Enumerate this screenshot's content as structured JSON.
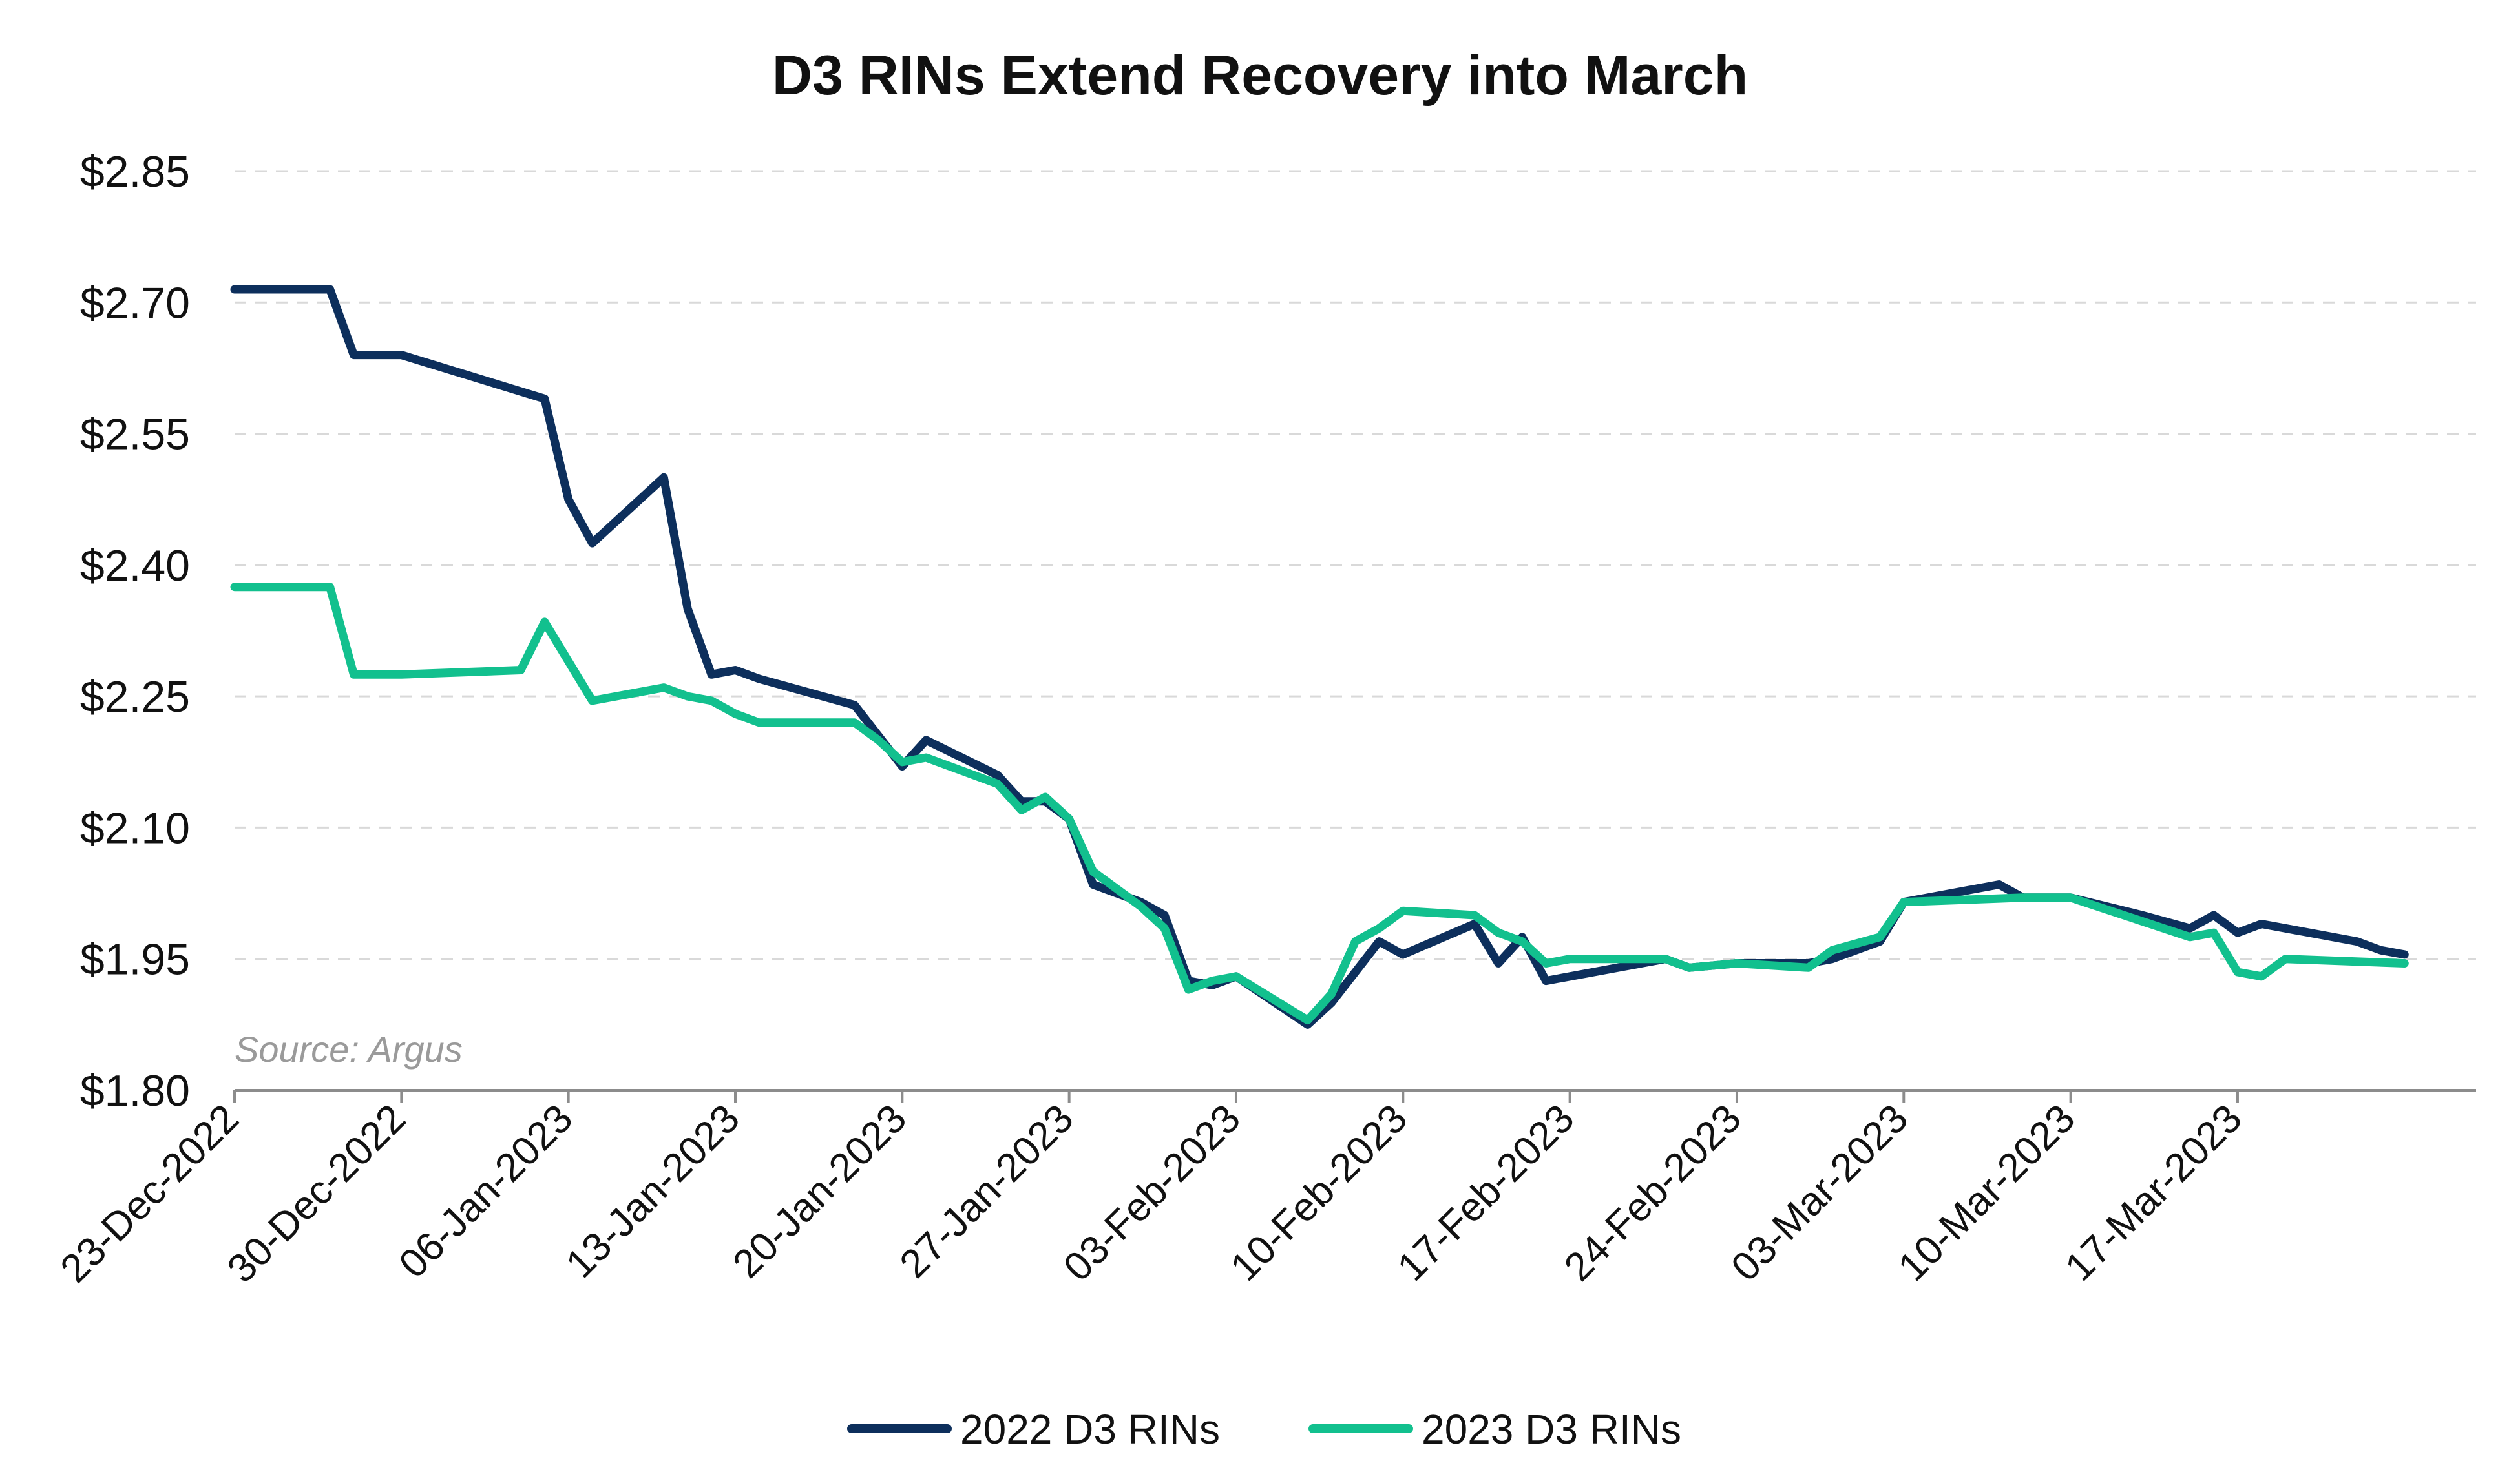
{
  "chart_data": {
    "type": "line",
    "title": "D3 RINs Extend Recovery into March",
    "source": "Source: Argus",
    "xlabel": "",
    "ylabel": "",
    "ylim": [
      1.8,
      2.85
    ],
    "xlim": [
      "2022-12-23",
      "2023-03-27"
    ],
    "yticks": [
      {
        "value": 1.8,
        "label": "$1.80"
      },
      {
        "value": 1.95,
        "label": "$1.95"
      },
      {
        "value": 2.1,
        "label": "$2.10"
      },
      {
        "value": 2.25,
        "label": "$2.25"
      },
      {
        "value": 2.4,
        "label": "$2.40"
      },
      {
        "value": 2.55,
        "label": "$2.55"
      },
      {
        "value": 2.7,
        "label": "$2.70"
      },
      {
        "value": 2.85,
        "label": "$2.85"
      }
    ],
    "xticks": [
      {
        "date": "2022-12-23",
        "label": "23-Dec-2022"
      },
      {
        "date": "2022-12-30",
        "label": "30-Dec-2022"
      },
      {
        "date": "2023-01-06",
        "label": "06-Jan-2023"
      },
      {
        "date": "2023-01-13",
        "label": "13-Jan-2023"
      },
      {
        "date": "2023-01-20",
        "label": "20-Jan-2023"
      },
      {
        "date": "2023-01-27",
        "label": "27-Jan-2023"
      },
      {
        "date": "2023-02-03",
        "label": "03-Feb-2023"
      },
      {
        "date": "2023-02-10",
        "label": "10-Feb-2023"
      },
      {
        "date": "2023-02-17",
        "label": "17-Feb-2023"
      },
      {
        "date": "2023-02-24",
        "label": "24-Feb-2023"
      },
      {
        "date": "2023-03-03",
        "label": "03-Mar-2023"
      },
      {
        "date": "2023-03-10",
        "label": "10-Mar-2023"
      },
      {
        "date": "2023-03-17",
        "label": "17-Mar-2023"
      }
    ],
    "grid": "horizontal-dashed",
    "legend_position": "bottom-center",
    "series": [
      {
        "name": "2022 D3 RINs",
        "color": "#0d2f5c",
        "points": [
          [
            "2022-12-23",
            2.715
          ],
          [
            "2022-12-27",
            2.715
          ],
          [
            "2022-12-28",
            2.64
          ],
          [
            "2022-12-30",
            2.64
          ],
          [
            "2023-01-05",
            2.59
          ],
          [
            "2023-01-06",
            2.475
          ],
          [
            "2023-01-07",
            2.425
          ],
          [
            "2023-01-10",
            2.5
          ],
          [
            "2023-01-11",
            2.35
          ],
          [
            "2023-01-12",
            2.275
          ],
          [
            "2023-01-13",
            2.28
          ],
          [
            "2023-01-14",
            2.27
          ],
          [
            "2023-01-18",
            2.24
          ],
          [
            "2023-01-19",
            2.205
          ],
          [
            "2023-01-20",
            2.17
          ],
          [
            "2023-01-21",
            2.2
          ],
          [
            "2023-01-24",
            2.16
          ],
          [
            "2023-01-25",
            2.13
          ],
          [
            "2023-01-26",
            2.13
          ],
          [
            "2023-01-27",
            2.11
          ],
          [
            "2023-01-28",
            2.035
          ],
          [
            "2023-01-30",
            2.015
          ],
          [
            "2023-01-31",
            2.0
          ],
          [
            "2023-02-01",
            1.925
          ],
          [
            "2023-02-02",
            1.92
          ],
          [
            "2023-02-03",
            1.93
          ],
          [
            "2023-02-06",
            1.875
          ],
          [
            "2023-02-07",
            1.9
          ],
          [
            "2023-02-09",
            1.97
          ],
          [
            "2023-02-10",
            1.955
          ],
          [
            "2023-02-13",
            1.99
          ],
          [
            "2023-02-14",
            1.945
          ],
          [
            "2023-02-15",
            1.975
          ],
          [
            "2023-02-16",
            1.925
          ],
          [
            "2023-02-21",
            1.95
          ],
          [
            "2023-02-22",
            1.94
          ],
          [
            "2023-02-24",
            1.945
          ],
          [
            "2023-02-27",
            1.945
          ],
          [
            "2023-02-28",
            1.95
          ],
          [
            "2023-03-02",
            1.97
          ],
          [
            "2023-03-03",
            2.015
          ],
          [
            "2023-03-07",
            2.035
          ],
          [
            "2023-03-08",
            2.02
          ],
          [
            "2023-03-10",
            2.02
          ],
          [
            "2023-03-13",
            2.0
          ],
          [
            "2023-03-15",
            1.985
          ],
          [
            "2023-03-16",
            2.0
          ],
          [
            "2023-03-17",
            1.98
          ],
          [
            "2023-03-18",
            1.99
          ],
          [
            "2023-03-22",
            1.97
          ],
          [
            "2023-03-23",
            1.96
          ],
          [
            "2023-03-24",
            1.955
          ]
        ]
      },
      {
        "name": "2023 D3 RINs",
        "color": "#12c08e",
        "points": [
          [
            "2022-12-23",
            2.375
          ],
          [
            "2022-12-27",
            2.375
          ],
          [
            "2022-12-28",
            2.275
          ],
          [
            "2022-12-30",
            2.275
          ],
          [
            "2023-01-04",
            2.28
          ],
          [
            "2023-01-05",
            2.335
          ],
          [
            "2023-01-06",
            2.29
          ],
          [
            "2023-01-07",
            2.245
          ],
          [
            "2023-01-10",
            2.26
          ],
          [
            "2023-01-11",
            2.25
          ],
          [
            "2023-01-12",
            2.245
          ],
          [
            "2023-01-13",
            2.23
          ],
          [
            "2023-01-14",
            2.22
          ],
          [
            "2023-01-18",
            2.22
          ],
          [
            "2023-01-19",
            2.2
          ],
          [
            "2023-01-20",
            2.175
          ],
          [
            "2023-01-21",
            2.18
          ],
          [
            "2023-01-24",
            2.15
          ],
          [
            "2023-01-25",
            2.12
          ],
          [
            "2023-01-26",
            2.135
          ],
          [
            "2023-01-27",
            2.11
          ],
          [
            "2023-01-28",
            2.05
          ],
          [
            "2023-01-30",
            2.01
          ],
          [
            "2023-01-31",
            1.985
          ],
          [
            "2023-02-01",
            1.915
          ],
          [
            "2023-02-02",
            1.925
          ],
          [
            "2023-02-03",
            1.93
          ],
          [
            "2023-02-06",
            1.88
          ],
          [
            "2023-02-07",
            1.91
          ],
          [
            "2023-02-08",
            1.97
          ],
          [
            "2023-02-09",
            1.985
          ],
          [
            "2023-02-10",
            2.005
          ],
          [
            "2023-02-13",
            2.0
          ],
          [
            "2023-02-14",
            1.98
          ],
          [
            "2023-02-15",
            1.97
          ],
          [
            "2023-02-16",
            1.945
          ],
          [
            "2023-02-17",
            1.95
          ],
          [
            "2023-02-21",
            1.95
          ],
          [
            "2023-02-22",
            1.94
          ],
          [
            "2023-02-24",
            1.945
          ],
          [
            "2023-02-27",
            1.94
          ],
          [
            "2023-02-28",
            1.96
          ],
          [
            "2023-03-02",
            1.975
          ],
          [
            "2023-03-03",
            2.015
          ],
          [
            "2023-03-08",
            2.02
          ],
          [
            "2023-03-10",
            2.02
          ],
          [
            "2023-03-15",
            1.975
          ],
          [
            "2023-03-16",
            1.98
          ],
          [
            "2023-03-17",
            1.935
          ],
          [
            "2023-03-18",
            1.93
          ],
          [
            "2023-03-19",
            1.95
          ],
          [
            "2023-03-24",
            1.945
          ]
        ]
      }
    ]
  }
}
